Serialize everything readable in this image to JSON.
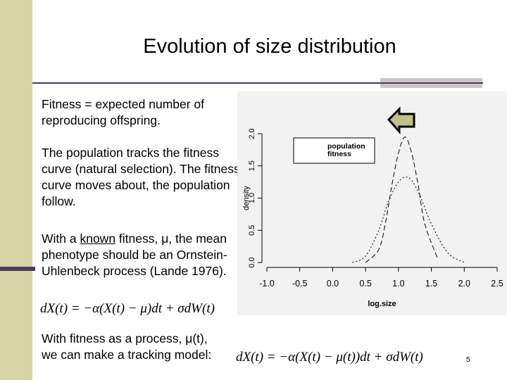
{
  "slide": {
    "title": "Evolution of size distribution",
    "page_number": "5",
    "paragraphs": {
      "p1": "Fitness = expected number of reproducing offspring.",
      "p2": "The population tracks the fitness curve (natural selection). The fitness curve moves about, the population follow.",
      "p3_before": "With a ",
      "p3_underlined": "known",
      "p3_after": " fitness, μ, the mean phenotype should be an Ornstein-Uhlenbeck process (Lande 1976).",
      "p4_line1": "With fitness as a process, μ(t),",
      "p4_line2": "we can make a tracking model:"
    },
    "formulas": {
      "ou": "dX(t) = −α(X(t) − μ)dt + σdW(t)",
      "tracking": "dX(t) = −α(X(t) − μ(t))dt + σdW(t)"
    },
    "arrow_icon": "left-arrow-icon",
    "colors": {
      "band": "#d6d3a8",
      "rule": "#4a3a55",
      "arrow_fill": "#c0c08a"
    }
  },
  "chart_data": {
    "type": "line",
    "xlabel": "log.size",
    "ylabel": "density",
    "xlim": [
      -1.0,
      2.5
    ],
    "ylim": [
      0.0,
      2.0
    ],
    "x_ticks": [
      "-1.0",
      "-0.5",
      "0.0",
      "0.5",
      "1.0",
      "1.5",
      "2.0",
      "2.5"
    ],
    "y_ticks": [
      "0.0",
      "0.5",
      "1.0",
      "1.5",
      "2.0"
    ],
    "legend": {
      "position": "top-right",
      "entries": [
        "population",
        "fitness"
      ]
    },
    "series": [
      {
        "name": "population",
        "style": "dashed",
        "x": [
          0.5,
          0.7,
          0.8,
          0.9,
          1.0,
          1.1,
          1.2,
          1.3,
          1.4,
          1.6
        ],
        "y": [
          0.0,
          0.2,
          0.6,
          1.2,
          1.7,
          1.95,
          1.7,
          1.2,
          0.6,
          0.05
        ]
      },
      {
        "name": "fitness",
        "style": "dotted",
        "x": [
          0.3,
          0.5,
          0.7,
          0.85,
          1.0,
          1.15,
          1.3,
          1.5,
          1.75,
          2.0
        ],
        "y": [
          0.0,
          0.1,
          0.5,
          0.95,
          1.25,
          1.32,
          1.1,
          0.6,
          0.15,
          0.0
        ]
      }
    ]
  }
}
